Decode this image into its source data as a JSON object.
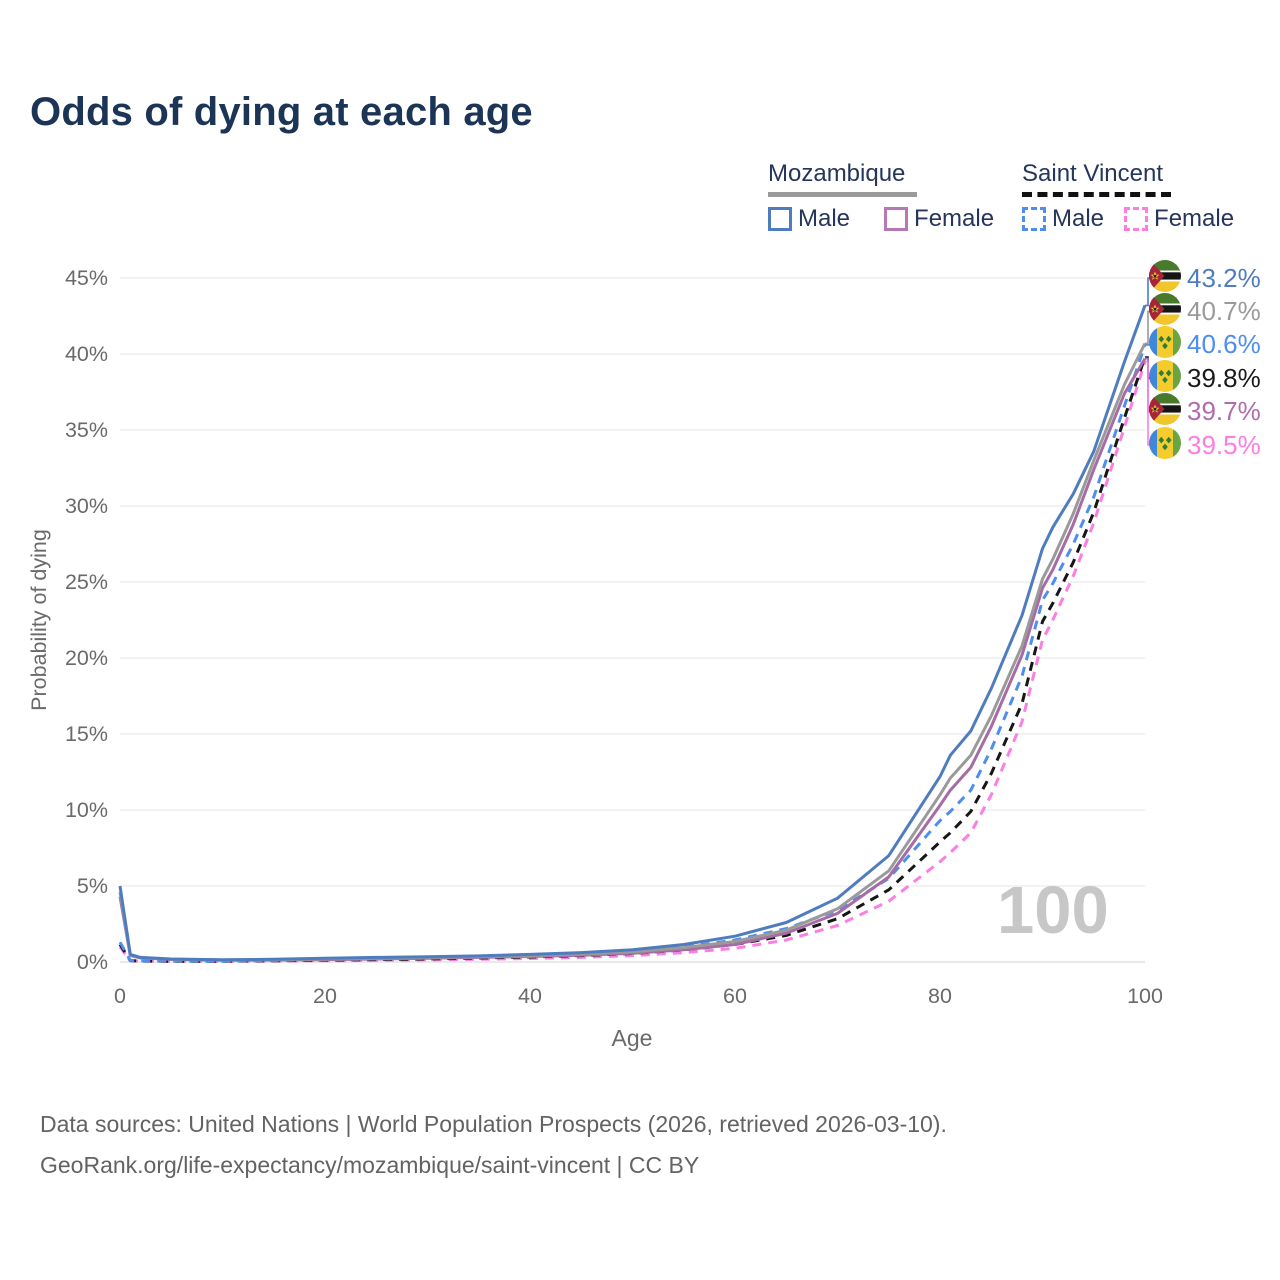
{
  "title": "Odds of dying at each age",
  "legend": {
    "groups": [
      {
        "country": "Mozambique",
        "line_style": "solid",
        "underline_color": "#9a9a9a",
        "items": [
          {
            "label": "Male",
            "color": "#4f7cbe",
            "dashed": false
          },
          {
            "label": "Female",
            "color": "#b678b6",
            "dashed": false
          }
        ]
      },
      {
        "country": "Saint Vincent",
        "line_style": "dashed",
        "underline_color": "#111111",
        "items": [
          {
            "label": "Male",
            "color": "#4d8ef0",
            "dashed": true
          },
          {
            "label": "Female",
            "color": "#fc7ee3",
            "dashed": true
          }
        ]
      }
    ]
  },
  "watermark": "100",
  "footer": {
    "line1": "Data sources: United Nations | World Population Prospects (2026, retrieved 2026-03-10).",
    "line2": "GeoRank.org/life-expectancy/mozambique/saint-vincent | CC BY"
  },
  "chart_data": {
    "type": "line",
    "title": "Odds of dying at each age",
    "xlabel": "Age",
    "ylabel": "Probability of dying",
    "xlim": [
      0,
      100
    ],
    "ylim": [
      0,
      45
    ],
    "grid": true,
    "x_tick_labels": [
      "0",
      "20",
      "40",
      "60",
      "80",
      "100"
    ],
    "y_tick_labels": [
      "0%",
      "5%",
      "10%",
      "15%",
      "20%",
      "25%",
      "30%",
      "35%",
      "40%",
      "45%"
    ],
    "x": [
      0,
      1,
      2,
      5,
      10,
      15,
      20,
      25,
      30,
      35,
      40,
      45,
      50,
      55,
      60,
      65,
      70,
      75,
      80,
      81,
      83,
      85,
      88,
      90,
      91,
      93,
      95,
      98,
      100
    ],
    "series": [
      {
        "name": "Mozambique Male",
        "country": "Mozambique",
        "sex": "Male",
        "style": "solid",
        "color": "#4f7cbe",
        "values": [
          5.0,
          0.5,
          0.3,
          0.2,
          0.15,
          0.18,
          0.25,
          0.3,
          0.35,
          0.4,
          0.5,
          0.62,
          0.8,
          1.15,
          1.7,
          2.6,
          4.2,
          7.0,
          12.2,
          13.6,
          15.2,
          18.0,
          22.8,
          27.2,
          28.6,
          30.8,
          33.6,
          39.5,
          43.2
        ]
      },
      {
        "name": "Mozambique Both sexes",
        "country": "Mozambique",
        "sex": "Both",
        "style": "solid",
        "color": "#9a9a9a",
        "values": [
          4.6,
          0.45,
          0.28,
          0.18,
          0.13,
          0.15,
          0.2,
          0.25,
          0.3,
          0.35,
          0.42,
          0.52,
          0.67,
          0.95,
          1.35,
          2.1,
          3.5,
          6.0,
          11.0,
          12.1,
          13.6,
          16.2,
          20.8,
          25.2,
          26.5,
          29.5,
          33.0,
          38.0,
          40.7
        ]
      },
      {
        "name": "Mozambique Female",
        "country": "Mozambique",
        "sex": "Female",
        "style": "solid",
        "color": "#a76ba5",
        "values": [
          4.3,
          0.42,
          0.26,
          0.17,
          0.12,
          0.13,
          0.16,
          0.2,
          0.25,
          0.3,
          0.36,
          0.45,
          0.57,
          0.8,
          1.15,
          1.9,
          3.2,
          5.6,
          10.3,
          11.3,
          12.8,
          15.5,
          20.2,
          24.6,
          25.8,
          28.8,
          32.4,
          37.4,
          39.7
        ]
      },
      {
        "name": "Saint Vincent Male",
        "country": "Saint Vincent",
        "sex": "Male",
        "style": "dashed",
        "color": "#4d8ef0",
        "values": [
          1.3,
          0.1,
          0.07,
          0.05,
          0.05,
          0.1,
          0.15,
          0.2,
          0.25,
          0.32,
          0.4,
          0.52,
          0.68,
          0.98,
          1.45,
          2.2,
          3.4,
          5.5,
          9.3,
          9.9,
          11.3,
          14.0,
          18.8,
          23.8,
          24.9,
          27.5,
          30.6,
          36.6,
          40.6
        ]
      },
      {
        "name": "Saint Vincent Both sexes",
        "country": "Saint Vincent",
        "sex": "Both",
        "style": "dashed",
        "color": "#161616",
        "values": [
          1.15,
          0.09,
          0.06,
          0.05,
          0.05,
          0.08,
          0.12,
          0.16,
          0.2,
          0.26,
          0.33,
          0.42,
          0.56,
          0.8,
          1.15,
          1.75,
          2.85,
          4.75,
          7.9,
          8.5,
          9.9,
          12.4,
          17.0,
          22.4,
          23.6,
          26.3,
          29.6,
          35.8,
          39.8
        ]
      },
      {
        "name": "Saint Vincent Female",
        "country": "Saint Vincent",
        "sex": "Female",
        "style": "dashed",
        "color": "#fc7ee3",
        "values": [
          1.0,
          0.08,
          0.05,
          0.04,
          0.04,
          0.06,
          0.08,
          0.11,
          0.14,
          0.18,
          0.23,
          0.3,
          0.42,
          0.62,
          0.9,
          1.45,
          2.4,
          4.0,
          6.6,
          7.2,
          8.5,
          11.0,
          15.8,
          21.2,
          22.5,
          25.4,
          28.9,
          35.2,
          39.5
        ]
      }
    ],
    "end_labels": [
      {
        "flag": "mozambique",
        "series": "Mozambique Male",
        "text": "43.2%",
        "value": 43.2,
        "color": "#4f7cbe"
      },
      {
        "flag": "mozambique",
        "series": "Mozambique Both sexes",
        "text": "40.7%",
        "value": 40.7,
        "color": "#9a9a9a"
      },
      {
        "flag": "saint-vincent",
        "series": "Saint Vincent Male",
        "text": "40.6%",
        "value": 40.6,
        "color": "#4d8ef0"
      },
      {
        "flag": "saint-vincent",
        "series": "Saint Vincent Both sexes",
        "text": "39.8%",
        "value": 39.8,
        "color": "#1a1a1a"
      },
      {
        "flag": "mozambique",
        "series": "Mozambique Female",
        "text": "39.7%",
        "value": 39.7,
        "color": "#b06cae"
      },
      {
        "flag": "saint-vincent",
        "series": "Saint Vincent Female",
        "text": "39.5%",
        "value": 39.5,
        "color": "#fc7ee3"
      }
    ]
  }
}
